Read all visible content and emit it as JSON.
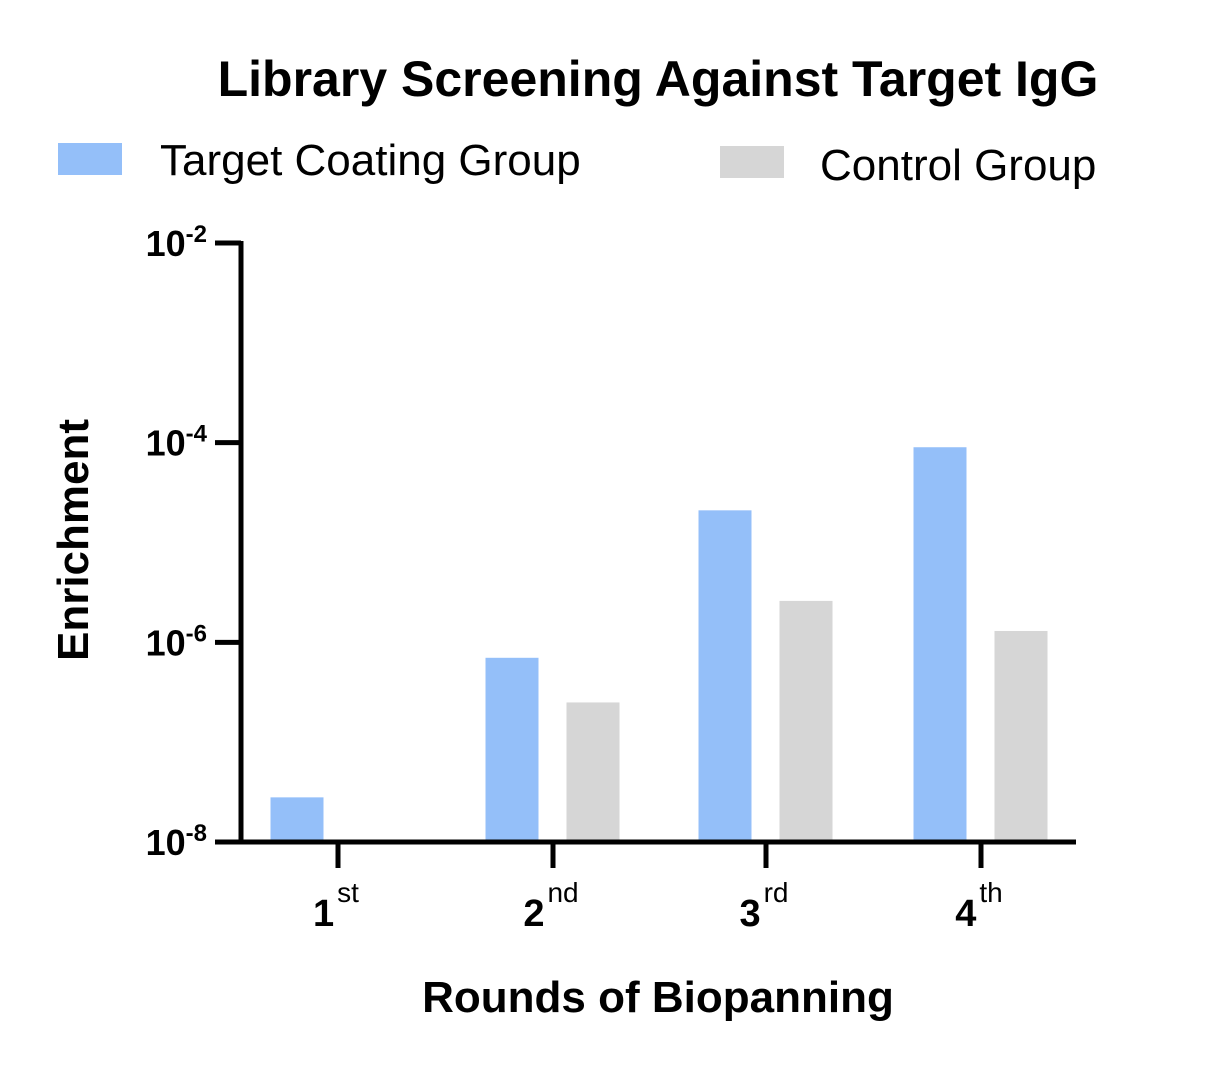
{
  "chart_data": {
    "type": "bar",
    "title": "Library Screening Against Target IgG",
    "xlabel": "Rounds of Biopanning",
    "ylabel": "Enrichment",
    "yscale": "log",
    "ylim": [
      1e-08,
      0.01
    ],
    "yticks": [
      {
        "base": "10",
        "exp": "-2",
        "value": 0.01
      },
      {
        "base": "10",
        "exp": "-4",
        "value": 0.0001
      },
      {
        "base": "10",
        "exp": "-6",
        "value": 1e-06
      },
      {
        "base": "10",
        "exp": "-8",
        "value": 1e-08
      }
    ],
    "categories": [
      {
        "num": "1",
        "sup": "st"
      },
      {
        "num": "2",
        "sup": "nd"
      },
      {
        "num": "3",
        "sup": "rd"
      },
      {
        "num": "4",
        "sup": "th"
      }
    ],
    "series": [
      {
        "name": "Target Coating Group",
        "color": "#94bff9",
        "values": [
          2.8e-08,
          7e-07,
          2.1e-05,
          9e-05
        ]
      },
      {
        "name": "Control Group",
        "color": "#d6d6d6",
        "values": [
          null,
          2.5e-07,
          2.6e-06,
          1.3e-06
        ]
      }
    ],
    "legend": "top",
    "grid": false
  }
}
